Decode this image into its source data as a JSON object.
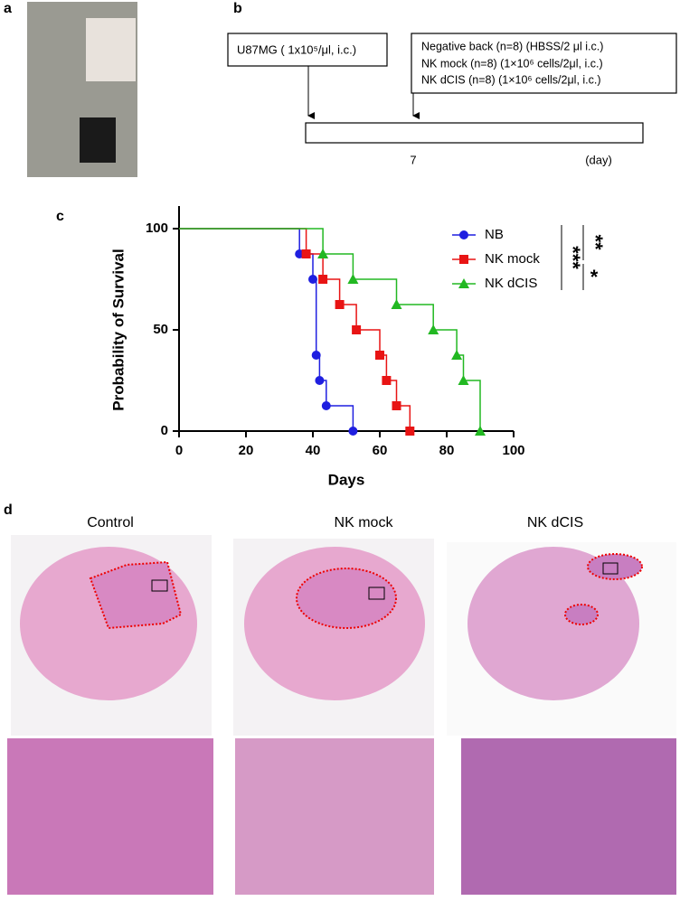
{
  "panels": {
    "a": "a",
    "b": "b",
    "c": "c",
    "d": "d"
  },
  "timeline": {
    "injection": "U87MG ( 1x10⁵/μl, i.c.)",
    "treatments": [
      "Negative back (n=8) (HBSS/2 μl i.c.)",
      "NK mock (n=8)  (1×10⁶ cells/2μl, i.c.)",
      "NK dCIS (n=8)   (1×10⁶ cells/2μl, i.c.)"
    ],
    "day_label": "7",
    "unit": "(day)"
  },
  "chart_data": {
    "type": "step",
    "xlabel": "Days",
    "ylabel": "Probability of Survival",
    "xlim": [
      0,
      100
    ],
    "xticks": [
      0,
      20,
      40,
      60,
      80,
      100
    ],
    "ylim": [
      0,
      100
    ],
    "yticks": [
      0,
      50,
      100
    ],
    "series": [
      {
        "name": "NB",
        "color": "#1f1fe0",
        "marker": "circle",
        "x": [
          0,
          36,
          40,
          41,
          42,
          44,
          52
        ],
        "values": [
          100,
          87.5,
          75,
          37.5,
          25,
          12.5,
          0
        ]
      },
      {
        "name": "NK mock",
        "color": "#e81414",
        "marker": "square",
        "x": [
          0,
          38,
          43,
          48,
          53,
          60,
          62,
          65,
          69
        ],
        "values": [
          100,
          87.5,
          75,
          62.5,
          50,
          37.5,
          25,
          12.5,
          0
        ]
      },
      {
        "name": "NK dCIS",
        "color": "#22b822",
        "marker": "triangle",
        "x": [
          0,
          43,
          52,
          65,
          76,
          83,
          85,
          90
        ],
        "values": [
          100,
          87.5,
          75,
          62.5,
          50,
          37.5,
          25,
          0
        ]
      }
    ],
    "significance": [
      "***",
      "**",
      "*"
    ]
  },
  "histology": {
    "groups": [
      "Control",
      "NK mock",
      "NK dCIS"
    ]
  }
}
